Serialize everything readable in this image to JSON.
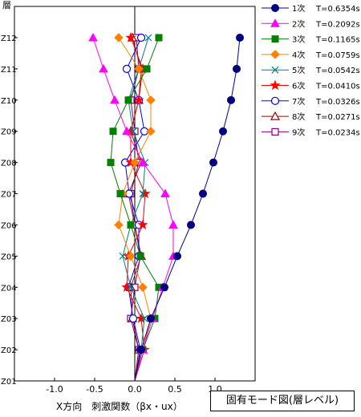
{
  "chart_data": {
    "type": "line",
    "ylabel": "層",
    "xlabel": "X方向　刺激関数（βx・ux）",
    "caption": "固有モード図(層レベル)",
    "xlim": [
      -1.5,
      1.5
    ],
    "xticks": [
      -1.0,
      -0.5,
      0.0,
      0.5,
      1.0
    ],
    "xtick_labels": [
      "-1.0",
      "-0.5",
      "0.0",
      "0.5",
      "1.0"
    ],
    "y_categories": [
      "Z01",
      "Z02",
      "Z03",
      "Z04",
      "Z05",
      "Z06",
      "Z07",
      "Z08",
      "Z09",
      "Z10",
      "Z11",
      "Z12"
    ],
    "legend_position": "top-right",
    "series": [
      {
        "name": "1次",
        "period": "T=0.6354s",
        "color": "#000080",
        "marker": "circle-filled",
        "values": [
          0.0,
          0.08,
          0.2,
          0.37,
          0.53,
          0.7,
          0.85,
          0.98,
          1.1,
          1.2,
          1.27,
          1.31
        ]
      },
      {
        "name": "2次",
        "period": "T=0.2092s",
        "color": "#ff00ff",
        "marker": "triangle-filled",
        "values": [
          0.0,
          0.1,
          0.22,
          0.35,
          0.48,
          0.48,
          0.38,
          0.1,
          -0.1,
          -0.25,
          -0.39,
          -0.52
        ]
      },
      {
        "name": "3次",
        "period": "T=0.1165s",
        "color": "#008000",
        "marker": "square-filled",
        "values": [
          0.0,
          0.1,
          0.25,
          0.3,
          0.07,
          -0.05,
          -0.18,
          -0.3,
          -0.27,
          -0.08,
          0.15,
          0.3
        ]
      },
      {
        "name": "4次",
        "period": "T=0.0759s",
        "color": "#ff8000",
        "marker": "diamond-filled",
        "values": [
          0.0,
          0.1,
          0.2,
          0.1,
          -0.05,
          -0.2,
          -0.15,
          0.0,
          0.2,
          0.2,
          0.05,
          -0.2
        ]
      },
      {
        "name": "5次",
        "period": "T=0.0542s",
        "color": "#008080",
        "marker": "x",
        "values": [
          0.0,
          0.08,
          0.12,
          -0.05,
          -0.15,
          -0.05,
          0.1,
          0.13,
          -0.02,
          -0.08,
          0.05,
          0.17
        ]
      },
      {
        "name": "6次",
        "period": "T=0.0410s",
        "color": "#ff0000",
        "marker": "star",
        "values": [
          0.0,
          0.12,
          0.08,
          -0.1,
          -0.08,
          0.1,
          0.13,
          -0.05,
          -0.05,
          0.05,
          0.1,
          -0.05
        ]
      },
      {
        "name": "7次",
        "period": "T=0.0326s",
        "color": "#0000ff",
        "marker": "circle-open",
        "values": [
          0.0,
          0.07,
          -0.02,
          -0.08,
          0.05,
          0.05,
          -0.07,
          -0.12,
          0.12,
          0.05,
          -0.1,
          0.08
        ]
      },
      {
        "name": "8次",
        "period": "T=0.0271s",
        "color": "#a00000",
        "marker": "triangle-open",
        "values": [
          0.0,
          0.05,
          -0.03,
          -0.05,
          0.08,
          0.0,
          -0.08,
          0.08,
          -0.05,
          0.05,
          0.08,
          -0.03
        ]
      },
      {
        "name": "9次",
        "period": "T=0.0234s",
        "color": "#800080",
        "marker": "square-open",
        "values": [
          0.0,
          0.05,
          -0.05,
          0.0,
          0.07,
          0.0,
          -0.05,
          0.05,
          0.0,
          -0.05,
          0.05,
          0.02
        ]
      }
    ]
  }
}
